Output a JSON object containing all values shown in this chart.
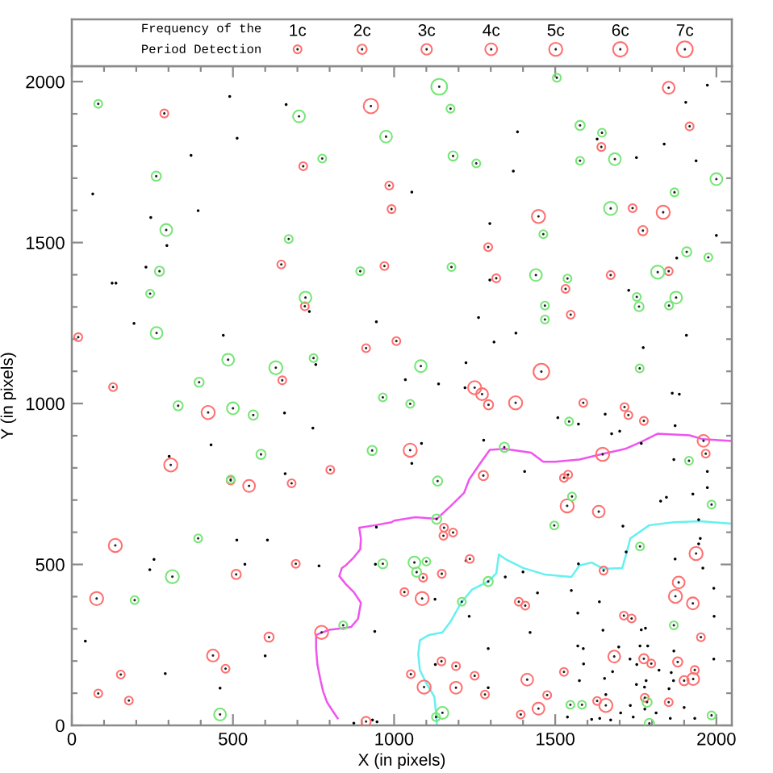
{
  "chart_data": {
    "type": "scatter",
    "xlabel": "X (in pixels)",
    "ylabel": "Y (in pixels)",
    "legend_title": "Frequency of the\nPeriod Detection",
    "size_legend": [
      {
        "value": 1,
        "label": "1c"
      },
      {
        "value": 2,
        "label": "2c"
      },
      {
        "value": 3,
        "label": "3c"
      },
      {
        "value": 4,
        "label": "4c"
      },
      {
        "value": 5,
        "label": "5c"
      },
      {
        "value": 6,
        "label": "6c"
      },
      {
        "value": 7,
        "label": "7c"
      }
    ],
    "xlim": [
      0,
      2048
    ],
    "ylim": [
      0,
      2048
    ],
    "xticks": [
      0,
      500,
      1000,
      1500,
      2000
    ],
    "yticks": [
      0,
      500,
      1000,
      1500,
      2000
    ],
    "series": [
      {
        "type": "line",
        "color": "#ee55ee",
        "x": [
          825,
          808,
          792,
          780,
          772,
          762,
          758,
          758,
          778,
          800,
          842,
          867,
          888,
          897,
          875,
          850,
          830,
          838,
          850,
          875,
          895,
          897,
          892,
          942,
          992,
          1000,
          1067,
          1133,
          1175,
          1217,
          1233,
          1267,
          1297,
          1342,
          1425,
          1463,
          1500,
          1575,
          1650,
          1717,
          1767,
          1817,
          1917,
          1958,
          2044
        ],
        "values": [
          22,
          47,
          72,
          105,
          139,
          189,
          239,
          281,
          289,
          297,
          302,
          306,
          331,
          381,
          414,
          439,
          464,
          489,
          497,
          522,
          547,
          580,
          614,
          622,
          631,
          636,
          647,
          642,
          681,
          722,
          764,
          814,
          856,
          859,
          847,
          819,
          819,
          826,
          844,
          859,
          881,
          906,
          901,
          889,
          884
        ]
      },
      {
        "type": "line",
        "color": "#66f0f0",
        "x": [
          1133,
          1130,
          1125,
          1100,
          1080,
          1075,
          1080,
          1108,
          1150,
          1175,
          1208,
          1242,
          1292,
          1317,
          1325,
          1350,
          1400,
          1467,
          1550,
          1575,
          1613,
          1650,
          1708,
          1720,
          1733,
          1792,
          1867,
          1950,
          2044
        ],
        "values": [
          2,
          39,
          89,
          131,
          172,
          222,
          264,
          281,
          289,
          322,
          381,
          422,
          447,
          472,
          531,
          514,
          489,
          469,
          461,
          497,
          506,
          486,
          489,
          531,
          581,
          622,
          631,
          634,
          627
        ]
      },
      {
        "color": "#000000",
        "x": [
          490,
          665,
          513,
          370,
          65,
          392,
          245,
          295,
          230,
          125,
          137,
          737,
          193,
          470,
          945,
          757,
          1035,
          1972,
          1905,
          1383,
          1630,
          1838,
          1752,
          1937,
          1370,
          1055,
          1297,
          2000,
          1877,
          1297,
          1728,
          1262,
          1378,
          1310,
          1907,
          1773,
          1223,
          1138,
          1220,
          1863,
          1885,
          660,
          748,
          432,
          302,
          662,
          512,
          607,
          945,
          255,
          242,
          537,
          767,
          942,
          940,
          42,
          600,
          290,
          460,
          875,
          933,
          947,
          1508,
          1572,
          1655,
          1675,
          1700,
          1767,
          1872,
          1278,
          1085,
          1055,
          1405,
          1868,
          1972,
          1827,
          1845,
          1927,
          1972,
          1710,
          1945,
          1950,
          1945,
          1720,
          1872,
          1958,
          1572,
          1400,
          1345,
          1223,
          1445,
          1550,
          1637,
          1992,
          1127,
          1233,
          1570,
          1648,
          1767,
          1780,
          1993,
          1422,
          1292,
          1570,
          1587,
          1697,
          1763,
          1787,
          1868,
          1992,
          1128,
          1588,
          1732,
          1753,
          1678,
          1653,
          1752,
          1777,
          1860,
          1822,
          1575,
          1292,
          1853,
          1867,
          1900,
          1733,
          1778,
          1538,
          1613,
          1638,
          1672,
          1742,
          1933,
          1857,
          1703,
          1813,
          1657,
          1782
        ],
        "values": [
          1954,
          1929,
          1824,
          1771,
          1651,
          1599,
          1578,
          1491,
          1424,
          1374,
          1374,
          1286,
          1249,
          1212,
          1254,
          1121,
          1074,
          1989,
          1936,
          1844,
          1822,
          1806,
          1764,
          1754,
          1722,
          1657,
          1559,
          1522,
          1452,
          1384,
          1352,
          1267,
          1219,
          1191,
          1212,
          1174,
          1127,
          1061,
          1049,
          1032,
          1029,
          971,
          924,
          872,
          836,
          782,
          576,
          576,
          616,
          516,
          484,
          501,
          496,
          501,
          292,
          262,
          216,
          161,
          116,
          7,
          17,
          11,
          956,
          936,
          967,
          906,
          914,
          876,
          931,
          886,
          876,
          814,
          789,
          826,
          789,
          697,
          709,
          719,
          739,
          619,
          639,
          581,
          564,
          539,
          517,
          489,
          502,
          477,
          461,
          512,
          412,
          419,
          384,
          426,
          392,
          339,
          349,
          296,
          297,
          302,
          339,
          289,
          239,
          247,
          239,
          244,
          247,
          247,
          231,
          206,
          189,
          191,
          206,
          189,
          167,
          146,
          127,
          119,
          164,
          172,
          139,
          117,
          114,
          139,
          56,
          62,
          51,
          26,
          19,
          22,
          17,
          26,
          22,
          22,
          39,
          39,
          96,
          139
        ]
      },
      {
        "type": "bubble",
        "color": "#ff7070",
        "x": [
          287,
          928,
          718,
          985,
          992,
          650,
          970,
          723,
          20,
          913,
          1007,
          128,
          653,
          423,
          1852,
          1917,
          1643,
          1448,
          1740,
          1835,
          1772,
          1292,
          1317,
          1672,
          1852,
          1532,
          1548,
          1457,
          1250,
          1273,
          1293,
          1377,
          1587,
          1715,
          307,
          550,
          682,
          802,
          493,
          1050,
          135,
          510,
          695,
          77,
          775,
          612,
          438,
          152,
          477,
          82,
          177,
          1032,
          1052,
          913,
          1727,
          1775,
          1647,
          1960,
          1967,
          1277,
          1540,
          1527,
          1537,
          1635,
          1155,
          1153,
          1183,
          1235,
          1148,
          1090,
          1650,
          1937,
          1883,
          1087,
          1873,
          1927,
          1387,
          1407,
          1713,
          1737,
          1952,
          1683,
          1775,
          1798,
          1880,
          1147,
          1192,
          1250,
          1527,
          1413,
          1093,
          1192,
          1282,
          1475,
          1900,
          1928,
          1933,
          1630,
          1657,
          1448,
          1393,
          1852,
          1778
        ],
        "values": [
          1901,
          1924,
          1737,
          1677,
          1604,
          1432,
          1427,
          1302,
          1206,
          1172,
          1194,
          1051,
          1072,
          972,
          1981,
          1861,
          1797,
          1581,
          1607,
          1594,
          1537,
          1486,
          1389,
          1399,
          1411,
          1356,
          1276,
          1099,
          1049,
          1029,
          996,
          1002,
          1002,
          989,
          809,
          744,
          752,
          794,
          761,
          855,
          559,
          469,
          502,
          394,
          289,
          274,
          217,
          158,
          176,
          99,
          77,
          414,
          159,
          12,
          964,
          946,
          842,
          884,
          844,
          776,
          779,
          769,
          682,
          664,
          614,
          589,
          599,
          517,
          471,
          459,
          481,
          534,
          444,
          394,
          401,
          379,
          384,
          372,
          341,
          332,
          274,
          214,
          207,
          192,
          197,
          199,
          184,
          154,
          166,
          142,
          119,
          117,
          96,
          94,
          139,
          144,
          172,
          76,
          62,
          52,
          34,
          72,
          86
        ],
        "sizes": [
          1,
          6,
          1,
          1,
          1,
          1,
          1,
          1,
          1,
          1,
          1,
          1,
          1,
          5,
          4,
          1,
          1,
          5,
          1,
          5,
          2,
          1,
          1,
          1,
          1,
          1,
          1,
          7,
          5,
          4,
          2,
          5,
          1,
          1,
          5,
          4,
          1,
          1,
          1,
          5,
          5,
          2,
          1,
          5,
          5,
          2,
          4,
          1,
          1,
          1,
          1,
          1,
          1,
          2,
          1,
          1,
          5,
          4,
          1,
          2,
          1,
          1,
          5,
          4,
          1,
          1,
          1,
          1,
          1,
          1,
          1,
          5,
          4,
          5,
          5,
          4,
          1,
          1,
          1,
          1,
          1,
          4,
          2,
          1,
          2,
          1,
          1,
          1,
          1,
          4,
          5,
          4,
          1,
          1,
          2,
          4,
          1,
          1,
          5,
          4,
          1,
          1,
          1
        ]
      },
      {
        "type": "bubble",
        "color": "#77e677",
        "x": [
          82,
          705,
          975,
          777,
          262,
          293,
          673,
          272,
          895,
          243,
          725,
          263,
          485,
          633,
          750,
          395,
          965,
          330,
          500,
          1050,
          1140,
          1505,
          1175,
          1577,
          1645,
          1183,
          1255,
          1577,
          1685,
          2000,
          1870,
          1672,
          1463,
          1908,
          1975,
          1178,
          1440,
          1538,
          1818,
          1753,
          1875,
          1760,
          1853,
          1468,
          1468,
          1083,
          1762,
          563,
          587,
          932,
          493,
          392,
          312,
          195,
          965,
          842,
          460,
          1543,
          1342,
          1135,
          1915,
          1552,
          1985,
          1497,
          1132,
          1763,
          1063,
          1100,
          1070,
          1292,
          1210,
          1868,
          1547,
          1583,
          1785,
          1150,
          1130,
          1792,
          1985
        ],
        "values": [
          1931,
          1892,
          1829,
          1761,
          1706,
          1539,
          1511,
          1411,
          1411,
          1341,
          1329,
          1219,
          1136,
          1111,
          1141,
          1066,
          1019,
          993,
          985,
          999,
          1984,
          2012,
          1916,
          1864,
          1841,
          1769,
          1746,
          1754,
          1759,
          1697,
          1656,
          1606,
          1526,
          1471,
          1454,
          1424,
          1399,
          1388,
          1408,
          1331,
          1329,
          1301,
          1304,
          1304,
          1261,
          1116,
          1109,
          964,
          842,
          854,
          764,
          581,
          462,
          389,
          502,
          311,
          34,
          944,
          864,
          759,
          822,
          711,
          686,
          621,
          641,
          556,
          506,
          509,
          476,
          447,
          384,
          311,
          64,
          64,
          72,
          39,
          26,
          6,
          31
        ],
        "sizes": [
          1,
          4,
          4,
          1,
          2,
          4,
          1,
          2,
          1,
          1,
          4,
          4,
          4,
          5,
          1,
          2,
          1,
          2,
          4,
          1,
          7,
          1,
          1,
          2,
          1,
          2,
          1,
          1,
          4,
          4,
          1,
          5,
          1,
          2,
          1,
          1,
          4,
          1,
          5,
          1,
          4,
          2,
          1,
          1,
          1,
          4,
          1,
          2,
          2,
          2,
          1,
          1,
          5,
          1,
          2,
          1,
          4,
          1,
          2,
          2,
          1,
          1,
          1,
          1,
          2,
          1,
          4,
          1,
          2,
          2,
          1,
          1,
          1,
          1,
          2,
          4,
          1,
          2,
          1
        ]
      }
    ]
  }
}
